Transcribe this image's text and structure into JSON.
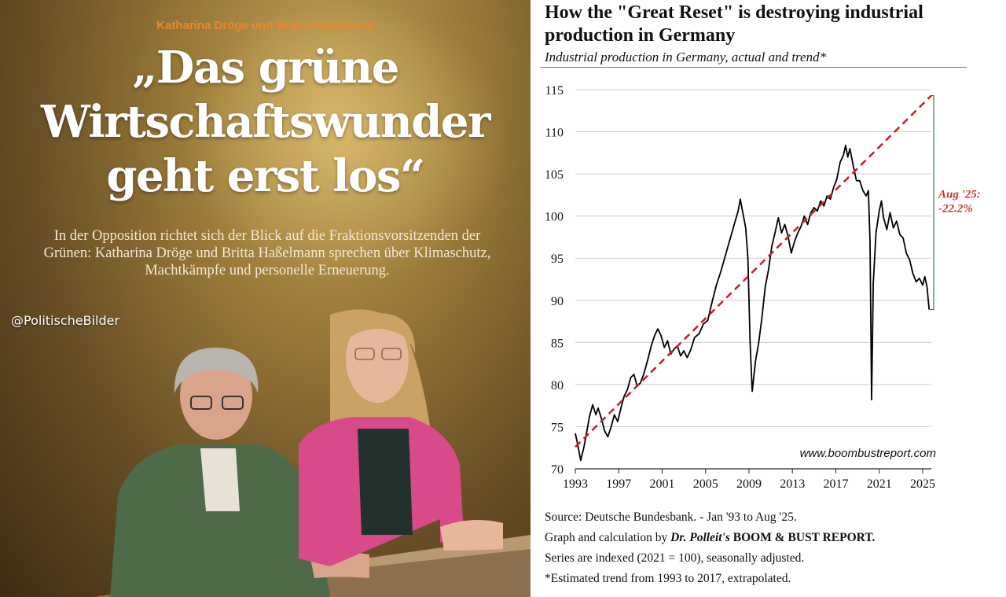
{
  "magazine": {
    "kicker": "Katharina Dröge und Britta Haßelmann",
    "headline_lines": [
      "„Das grüne",
      "Wirtschaftswunder",
      "geht erst los“"
    ],
    "teaser": "In der Opposition richtet sich der Blick auf die Fraktionsvorsitzenden der Grünen: Katharina Dröge und Britta Haßelmann sprechen über Klimaschutz, Machtkämpfe und personelle Erneuerung.",
    "handle": "@PolitischeBilder",
    "colors": {
      "kicker": "#e8892a",
      "headline": "#ffffff",
      "background": "#7a5c2c"
    }
  },
  "chart_title": "How the \"Great Reset\" is destroying industrial production in Germany",
  "chart_subtitle": "Industrial production in Germany, actual and trend*",
  "footnotes": {
    "source": "Source: Deutsche Bundesbank. - Jan '93 to Aug '25.",
    "graph_prefix": "Graph and calculation by ",
    "graph_author": "Dr. Polleit's",
    "graph_report": "BOOM & BUST REPORT.",
    "indexed": "Series are indexed (2021 = 100), seasonally adjusted.",
    "trend_note": "*Estimated trend from 1993 to 2017, extrapolated."
  },
  "chart_data": {
    "type": "line",
    "title": "How the \"Great Reset\" is destroying industrial production in Germany",
    "subtitle": "Industrial production in Germany, actual and trend*",
    "xlabel": "",
    "ylabel": "",
    "xlim": [
      1993,
      2025.8
    ],
    "ylim": [
      70,
      115
    ],
    "x_ticks": [
      1993,
      1997,
      2001,
      2005,
      2009,
      2013,
      2017,
      2021,
      2025
    ],
    "y_ticks": [
      70,
      75,
      80,
      85,
      90,
      95,
      100,
      105,
      110,
      115
    ],
    "grid": "horizontal",
    "watermark": "www.boombustreport.com",
    "annotation": {
      "line1": "Aug '25:",
      "line2": "-22.2%"
    },
    "series": [
      {
        "style": "solid",
        "color": "#000000",
        "points": [
          [
            1993.0,
            74.2
          ],
          [
            1993.2,
            73.0
          ],
          [
            1993.5,
            71.0
          ],
          [
            1993.8,
            72.6
          ],
          [
            1994.0,
            74.0
          ],
          [
            1994.3,
            76.2
          ],
          [
            1994.6,
            77.6
          ],
          [
            1994.9,
            76.4
          ],
          [
            1995.1,
            77.2
          ],
          [
            1995.4,
            76.0
          ],
          [
            1995.7,
            74.5
          ],
          [
            1996.0,
            73.8
          ],
          [
            1996.3,
            75.0
          ],
          [
            1996.6,
            76.4
          ],
          [
            1996.9,
            75.6
          ],
          [
            1997.2,
            77.2
          ],
          [
            1997.5,
            78.6
          ],
          [
            1997.8,
            79.4
          ],
          [
            1998.1,
            80.8
          ],
          [
            1998.4,
            81.2
          ],
          [
            1998.7,
            79.8
          ],
          [
            1999.0,
            80.2
          ],
          [
            1999.3,
            81.2
          ],
          [
            1999.6,
            82.6
          ],
          [
            2000.0,
            84.6
          ],
          [
            2000.3,
            85.8
          ],
          [
            2000.6,
            86.6
          ],
          [
            2000.9,
            85.8
          ],
          [
            2001.2,
            84.4
          ],
          [
            2001.5,
            85.2
          ],
          [
            2001.8,
            83.6
          ],
          [
            2002.1,
            84.2
          ],
          [
            2002.4,
            84.6
          ],
          [
            2002.7,
            83.4
          ],
          [
            2003.0,
            84.0
          ],
          [
            2003.3,
            83.2
          ],
          [
            2003.6,
            84.0
          ],
          [
            2004.0,
            85.6
          ],
          [
            2004.4,
            86.0
          ],
          [
            2004.8,
            87.2
          ],
          [
            2005.2,
            87.6
          ],
          [
            2005.6,
            89.8
          ],
          [
            2006.0,
            91.8
          ],
          [
            2006.4,
            93.4
          ],
          [
            2006.8,
            95.2
          ],
          [
            2007.2,
            97.0
          ],
          [
            2007.6,
            98.8
          ],
          [
            2008.0,
            100.6
          ],
          [
            2008.2,
            102.0
          ],
          [
            2008.4,
            100.6
          ],
          [
            2008.7,
            98.6
          ],
          [
            2008.9,
            95.0
          ],
          [
            2009.1,
            85.0
          ],
          [
            2009.3,
            79.2
          ],
          [
            2009.6,
            82.8
          ],
          [
            2009.9,
            85.0
          ],
          [
            2010.2,
            88.0
          ],
          [
            2010.5,
            91.6
          ],
          [
            2010.8,
            93.6
          ],
          [
            2011.1,
            96.4
          ],
          [
            2011.4,
            98.0
          ],
          [
            2011.7,
            99.8
          ],
          [
            2012.0,
            98.0
          ],
          [
            2012.3,
            99.0
          ],
          [
            2012.6,
            97.6
          ],
          [
            2012.9,
            95.6
          ],
          [
            2013.2,
            97.0
          ],
          [
            2013.5,
            98.0
          ],
          [
            2013.8,
            98.8
          ],
          [
            2014.1,
            100.0
          ],
          [
            2014.4,
            99.0
          ],
          [
            2014.7,
            100.4
          ],
          [
            2015.0,
            101.0
          ],
          [
            2015.3,
            100.6
          ],
          [
            2015.6,
            101.8
          ],
          [
            2015.9,
            101.2
          ],
          [
            2016.2,
            102.4
          ],
          [
            2016.5,
            102.0
          ],
          [
            2016.8,
            103.4
          ],
          [
            2017.1,
            104.4
          ],
          [
            2017.4,
            106.4
          ],
          [
            2017.7,
            107.2
          ],
          [
            2017.9,
            108.4
          ],
          [
            2018.1,
            107.0
          ],
          [
            2018.3,
            108.0
          ],
          [
            2018.6,
            106.0
          ],
          [
            2018.9,
            104.2
          ],
          [
            2019.2,
            104.2
          ],
          [
            2019.5,
            103.0
          ],
          [
            2019.8,
            102.4
          ],
          [
            2020.0,
            103.0
          ],
          [
            2020.15,
            97.0
          ],
          [
            2020.3,
            78.2
          ],
          [
            2020.45,
            92.0
          ],
          [
            2020.7,
            98.0
          ],
          [
            2021.0,
            100.6
          ],
          [
            2021.2,
            101.8
          ],
          [
            2021.4,
            99.8
          ],
          [
            2021.7,
            98.4
          ],
          [
            2022.0,
            100.4
          ],
          [
            2022.3,
            98.6
          ],
          [
            2022.6,
            99.4
          ],
          [
            2022.9,
            97.8
          ],
          [
            2023.2,
            97.4
          ],
          [
            2023.5,
            95.6
          ],
          [
            2023.8,
            94.8
          ],
          [
            2024.1,
            93.2
          ],
          [
            2024.4,
            92.2
          ],
          [
            2024.7,
            92.6
          ],
          [
            2025.0,
            91.8
          ],
          [
            2025.2,
            92.8
          ],
          [
            2025.4,
            91.6
          ],
          [
            2025.6,
            88.9
          ]
        ]
      },
      {
        "style": "dashed",
        "color": "#cc2222",
        "points": [
          [
            1993.0,
            72.6
          ],
          [
            2025.8,
            114.3
          ]
        ]
      }
    ]
  }
}
